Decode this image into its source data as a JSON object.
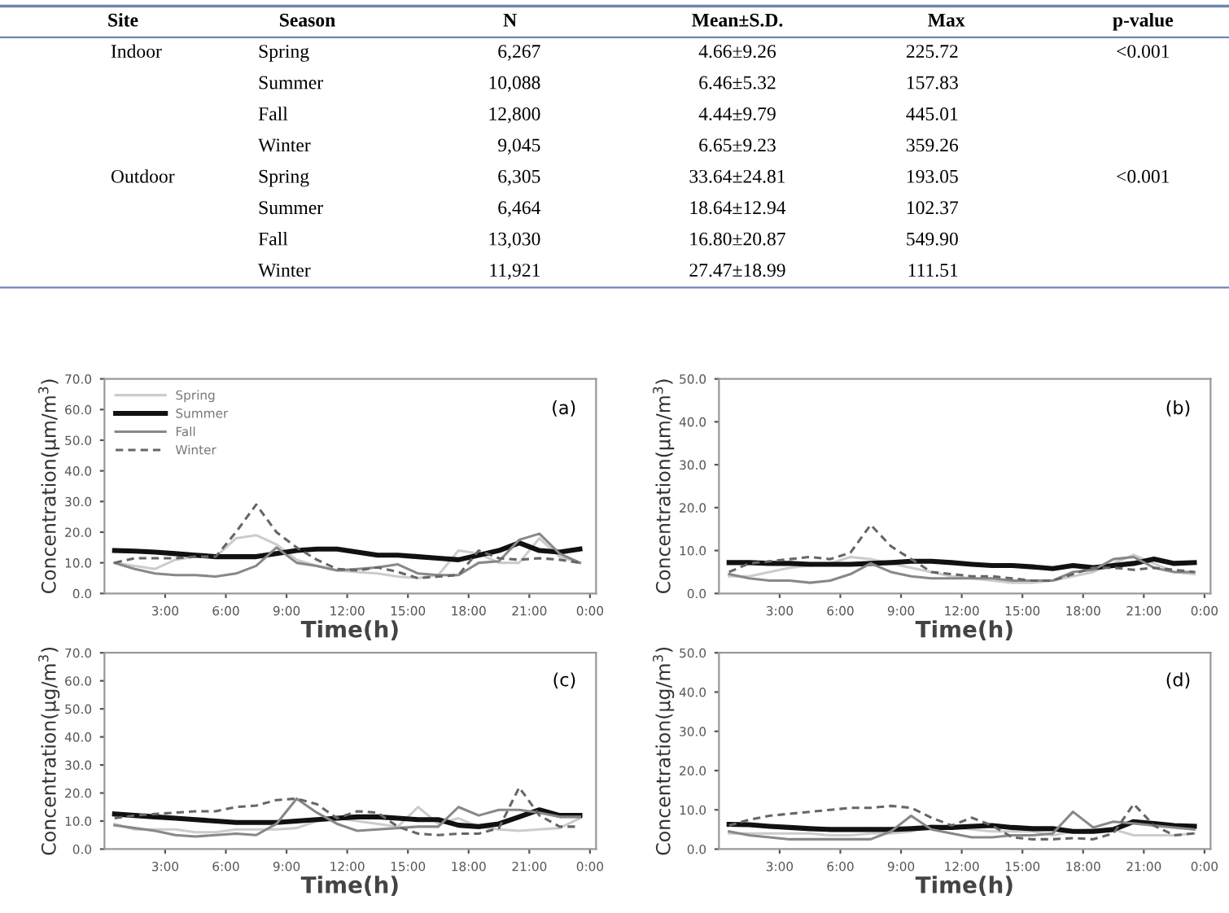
{
  "chart_data": [
    {
      "type": "other",
      "categories": [
        "Site",
        "Season",
        "N",
        "Mean±S.D.",
        "Max",
        "p-value"
      ],
      "cell_labels": [
        [
          "Indoor",
          "Spring",
          "6,267",
          "4.66±9.26",
          "225.72",
          "<0.001"
        ],
        [
          null,
          "Summer",
          "10,088",
          "6.46±5.32",
          "157.83",
          null
        ],
        [
          null,
          "Fall",
          "12,800",
          "4.44±9.79",
          "445.01",
          null
        ],
        [
          null,
          "Winter",
          "9,045",
          "6.65±9.23",
          "359.26",
          null
        ],
        [
          "Outdoor",
          "Spring",
          "6,305",
          "33.64±24.81",
          "193.05",
          "<0.001"
        ],
        [
          null,
          "Summer",
          "6,464",
          "18.64±12.94",
          "102.37",
          null
        ],
        [
          null,
          "Fall",
          "13,030",
          "16.80±20.87",
          "549.90",
          null
        ],
        [
          null,
          "Winter",
          "11,921",
          "27.47±18.99",
          "111.51",
          null
        ]
      ]
    },
    {
      "type": "line",
      "xlabel": "Time(h)",
      "ylabel": "Concentration(μm/m$^{3}$)",
      "annotations": [
        "(a)"
      ],
      "legend": "top left",
      "grid": false,
      "marker": "none",
      "x": [
        0.5,
        1.5,
        2.5,
        3.5,
        4.5,
        5.5,
        6.5,
        7.5,
        8.5,
        9.5,
        10.5,
        11.5,
        12.5,
        13.5,
        14.5,
        15.5,
        16.5,
        17.5,
        18.5,
        19.5,
        20.5,
        21.5,
        22.5,
        23.5
      ],
      "xlim": [
        0,
        24.3
      ],
      "xticks": [
        {
          "value": 3,
          "label": "3:00"
        },
        {
          "value": 6,
          "label": "6:00"
        },
        {
          "value": 9,
          "label": "9:00"
        },
        {
          "value": 12,
          "label": "12:00"
        },
        {
          "value": 15,
          "label": "15:00"
        },
        {
          "value": 18,
          "label": "18:00"
        },
        {
          "value": 21,
          "label": "21:00"
        },
        {
          "value": 24,
          "label": "0:00"
        }
      ],
      "ylim": [
        0,
        70
      ],
      "yticks": [
        {
          "value": 0,
          "label": "0.0"
        },
        {
          "value": 10,
          "label": "10.0"
        },
        {
          "value": 20,
          "label": "20.0"
        },
        {
          "value": 30,
          "label": "30.0"
        },
        {
          "value": 40,
          "label": "40.0"
        },
        {
          "value": 50,
          "label": "50.0"
        },
        {
          "value": 60,
          "label": "60.0"
        },
        {
          "value": 70,
          "label": "70.0"
        }
      ],
      "series": [
        {
          "name": "Spring",
          "color": "#cccccc",
          "line_style": "solid",
          "values": [
            10,
            9,
            8,
            11,
            12,
            12,
            18,
            19,
            16,
            11,
            9,
            7.5,
            7,
            6.5,
            5.5,
            5,
            6,
            14,
            13,
            10,
            10,
            18,
            12,
            10
          ]
        },
        {
          "name": "Summer",
          "color": "#111111",
          "line_style": "solid",
          "values": [
            14,
            13.8,
            13.5,
            13,
            12.5,
            12,
            12,
            12,
            13,
            14,
            14.5,
            14.5,
            13.5,
            12.5,
            12.5,
            12,
            11.5,
            11,
            12.5,
            14,
            16.5,
            14,
            13.5,
            14.5
          ]
        },
        {
          "name": "Fall",
          "color": "#888888",
          "line_style": "solid",
          "values": [
            10,
            8,
            6.5,
            6,
            6,
            5.5,
            6.5,
            9,
            15,
            10,
            9,
            7.5,
            8,
            8.5,
            9.5,
            6.5,
            6,
            6,
            10,
            10.5,
            17.5,
            19.5,
            13,
            10
          ]
        },
        {
          "name": "Winter",
          "color": "#666666",
          "line_style": "dashed",
          "values": [
            10,
            11.5,
            11.5,
            11.5,
            12,
            12,
            20,
            29,
            20,
            15,
            11,
            8,
            7.5,
            8.5,
            7,
            5,
            5.5,
            6,
            14,
            11.5,
            11,
            11.5,
            11,
            10
          ]
        }
      ]
    },
    {
      "type": "line",
      "xlabel": "Time(h)",
      "ylabel": "Concentration(μm/m$^{3}$)",
      "annotations": [
        "(b)"
      ],
      "grid": false,
      "marker": "none",
      "x": [
        0.5,
        1.5,
        2.5,
        3.5,
        4.5,
        5.5,
        6.5,
        7.5,
        8.5,
        9.5,
        10.5,
        11.5,
        12.5,
        13.5,
        14.5,
        15.5,
        16.5,
        17.5,
        18.5,
        19.5,
        20.5,
        21.5,
        22.5,
        23.5
      ],
      "xlim": [
        0,
        24.3
      ],
      "xticks": [
        {
          "value": 3,
          "label": "3:00"
        },
        {
          "value": 6,
          "label": "6:00"
        },
        {
          "value": 9,
          "label": "9:00"
        },
        {
          "value": 12,
          "label": "12:00"
        },
        {
          "value": 15,
          "label": "15:00"
        },
        {
          "value": 18,
          "label": "18:00"
        },
        {
          "value": 21,
          "label": "21:00"
        },
        {
          "value": 24,
          "label": "0:00"
        }
      ],
      "ylim": [
        0,
        50
      ],
      "yticks": [
        {
          "value": 0,
          "label": "0.0"
        },
        {
          "value": 10,
          "label": "10.0"
        },
        {
          "value": 20,
          "label": "20.0"
        },
        {
          "value": 30,
          "label": "30.0"
        },
        {
          "value": 40,
          "label": "40.0"
        },
        {
          "value": 50,
          "label": "50.0"
        }
      ],
      "series": [
        {
          "color": "#cccccc",
          "line_style": "solid",
          "values": [
            4,
            4,
            5,
            6,
            6.5,
            7,
            8.5,
            8,
            7,
            6,
            5,
            4,
            3.5,
            3,
            2.5,
            2.5,
            3,
            4,
            5,
            7,
            9,
            7,
            5,
            4.5
          ]
        },
        {
          "color": "#111111",
          "line_style": "solid",
          "values": [
            7.2,
            7.2,
            7,
            7,
            6.8,
            6.8,
            6.8,
            7,
            7.2,
            7.5,
            7.5,
            7.2,
            6.8,
            6.5,
            6.5,
            6.2,
            5.8,
            6.5,
            6,
            6.5,
            7,
            8,
            7,
            7.2
          ]
        },
        {
          "color": "#888888",
          "line_style": "solid",
          "values": [
            4.5,
            3.5,
            3,
            3,
            2.5,
            3,
            4.5,
            7,
            5,
            4,
            3.5,
            3.5,
            3.5,
            3.5,
            3,
            3,
            3,
            5,
            5.5,
            8,
            8.5,
            6,
            5,
            5
          ]
        },
        {
          "color": "#666666",
          "line_style": "dashed",
          "values": [
            5,
            7,
            7.5,
            8,
            8.5,
            8,
            9.5,
            16,
            11,
            8,
            5,
            4.5,
            4,
            4,
            3.5,
            3,
            3,
            4.5,
            6,
            6,
            5.5,
            6,
            5.5,
            5
          ]
        }
      ]
    },
    {
      "type": "line",
      "xlabel": "Time(h)",
      "ylabel": "Concentration(μg/m$^{3}$)",
      "annotations": [
        "(c)"
      ],
      "grid": false,
      "marker": "none",
      "x": [
        0.5,
        1.5,
        2.5,
        3.5,
        4.5,
        5.5,
        6.5,
        7.5,
        8.5,
        9.5,
        10.5,
        11.5,
        12.5,
        13.5,
        14.5,
        15.5,
        16.5,
        17.5,
        18.5,
        19.5,
        20.5,
        21.5,
        22.5,
        23.5
      ],
      "xlim": [
        0,
        24.3
      ],
      "xticks": [
        {
          "value": 3,
          "label": "3:00"
        },
        {
          "value": 6,
          "label": "6:00"
        },
        {
          "value": 9,
          "label": "9:00"
        },
        {
          "value": 12,
          "label": "12:00"
        },
        {
          "value": 15,
          "label": "15:00"
        },
        {
          "value": 18,
          "label": "18:00"
        },
        {
          "value": 21,
          "label": "21:00"
        },
        {
          "value": 24,
          "label": "0:00"
        }
      ],
      "ylim": [
        0,
        70
      ],
      "yticks": [
        {
          "value": 0,
          "label": "0.0"
        },
        {
          "value": 10,
          "label": "10.0"
        },
        {
          "value": 20,
          "label": "20.0"
        },
        {
          "value": 30,
          "label": "30.0"
        },
        {
          "value": 40,
          "label": "40.0"
        },
        {
          "value": 50,
          "label": "50.0"
        },
        {
          "value": 60,
          "label": "60.0"
        },
        {
          "value": 70,
          "label": "70.0"
        }
      ],
      "series": [
        {
          "color": "#cccccc",
          "line_style": "solid",
          "values": [
            9,
            7,
            7,
            7,
            6,
            6,
            7,
            7,
            7,
            7.5,
            10,
            11,
            10,
            9,
            8,
            15,
            9,
            11,
            8,
            7,
            6.5,
            7,
            7.5,
            11
          ]
        },
        {
          "color": "#111111",
          "line_style": "solid",
          "values": [
            12.5,
            12,
            11.5,
            11,
            10.5,
            10,
            9.5,
            9.5,
            9.5,
            10,
            10.5,
            11,
            11.5,
            11.5,
            11,
            10.5,
            10.5,
            8.5,
            8,
            9,
            11.5,
            14,
            12,
            12
          ]
        },
        {
          "color": "#888888",
          "line_style": "solid",
          "values": [
            8.5,
            7.5,
            6.5,
            5,
            4.5,
            5,
            5.5,
            5,
            9,
            18,
            13,
            9,
            6.5,
            7,
            7.5,
            8,
            8,
            15,
            12,
            14,
            14,
            13,
            11.5,
            11.5
          ]
        },
        {
          "color": "#666666",
          "line_style": "dashed",
          "values": [
            11,
            12,
            12.5,
            13,
            13.5,
            13.5,
            15,
            15.5,
            17.5,
            18,
            16,
            11,
            13.5,
            13,
            8,
            5.5,
            5,
            5.5,
            5.5,
            7.5,
            22,
            12,
            8,
            8
          ]
        }
      ]
    },
    {
      "type": "line",
      "xlabel": "Time(h)",
      "ylabel": "Concentration(μg/m$^{3}$)",
      "annotations": [
        "(d)"
      ],
      "grid": false,
      "marker": "none",
      "x": [
        0.5,
        1.5,
        2.5,
        3.5,
        4.5,
        5.5,
        6.5,
        7.5,
        8.5,
        9.5,
        10.5,
        11.5,
        12.5,
        13.5,
        14.5,
        15.5,
        16.5,
        17.5,
        18.5,
        19.5,
        20.5,
        21.5,
        22.5,
        23.5
      ],
      "xlim": [
        0,
        24.3
      ],
      "xticks": [
        {
          "value": 3,
          "label": "3:00"
        },
        {
          "value": 6,
          "label": "6:00"
        },
        {
          "value": 9,
          "label": "9:00"
        },
        {
          "value": 12,
          "label": "12:00"
        },
        {
          "value": 15,
          "label": "15:00"
        },
        {
          "value": 18,
          "label": "18:00"
        },
        {
          "value": 21,
          "label": "21:00"
        },
        {
          "value": 24,
          "label": "0:00"
        }
      ],
      "ylim": [
        0,
        50
      ],
      "yticks": [
        {
          "value": 0,
          "label": "0.0"
        },
        {
          "value": 10,
          "label": "10.0"
        },
        {
          "value": 20,
          "label": "20.0"
        },
        {
          "value": 30,
          "label": "30.0"
        },
        {
          "value": 40,
          "label": "40.0"
        },
        {
          "value": 50,
          "label": "50.0"
        }
      ],
      "series": [
        {
          "color": "#cccccc",
          "line_style": "solid",
          "values": [
            4,
            4,
            4,
            4,
            4,
            3.5,
            3.5,
            4,
            4,
            4.5,
            6,
            5.5,
            5,
            4.5,
            4.5,
            4.5,
            3.5,
            4.5,
            5,
            5,
            3.5,
            3.5,
            3.5,
            4
          ]
        },
        {
          "color": "#111111",
          "line_style": "solid",
          "values": [
            6.3,
            6.2,
            5.8,
            5.5,
            5.2,
            5,
            5,
            5,
            5,
            5.2,
            5.5,
            5.5,
            5.8,
            6,
            5.5,
            5.2,
            5.2,
            4.5,
            4.5,
            5,
            7,
            6.5,
            6,
            5.8
          ]
        },
        {
          "color": "#888888",
          "line_style": "solid",
          "values": [
            4.5,
            3.5,
            3,
            2.5,
            2.5,
            2.5,
            2.5,
            2.5,
            4.5,
            8.5,
            5,
            4,
            3,
            3,
            3.5,
            3.5,
            4,
            9.5,
            5.5,
            7,
            6.5,
            6,
            5.5,
            5
          ]
        },
        {
          "color": "#666666",
          "line_style": "dashed",
          "values": [
            6,
            7.5,
            8.5,
            9,
            9.5,
            10,
            10.5,
            10.5,
            11,
            10.5,
            8,
            6,
            8,
            6,
            3,
            2.5,
            2.5,
            2.8,
            2.5,
            4,
            11.5,
            6,
            3.5,
            4
          ]
        }
      ]
    }
  ]
}
